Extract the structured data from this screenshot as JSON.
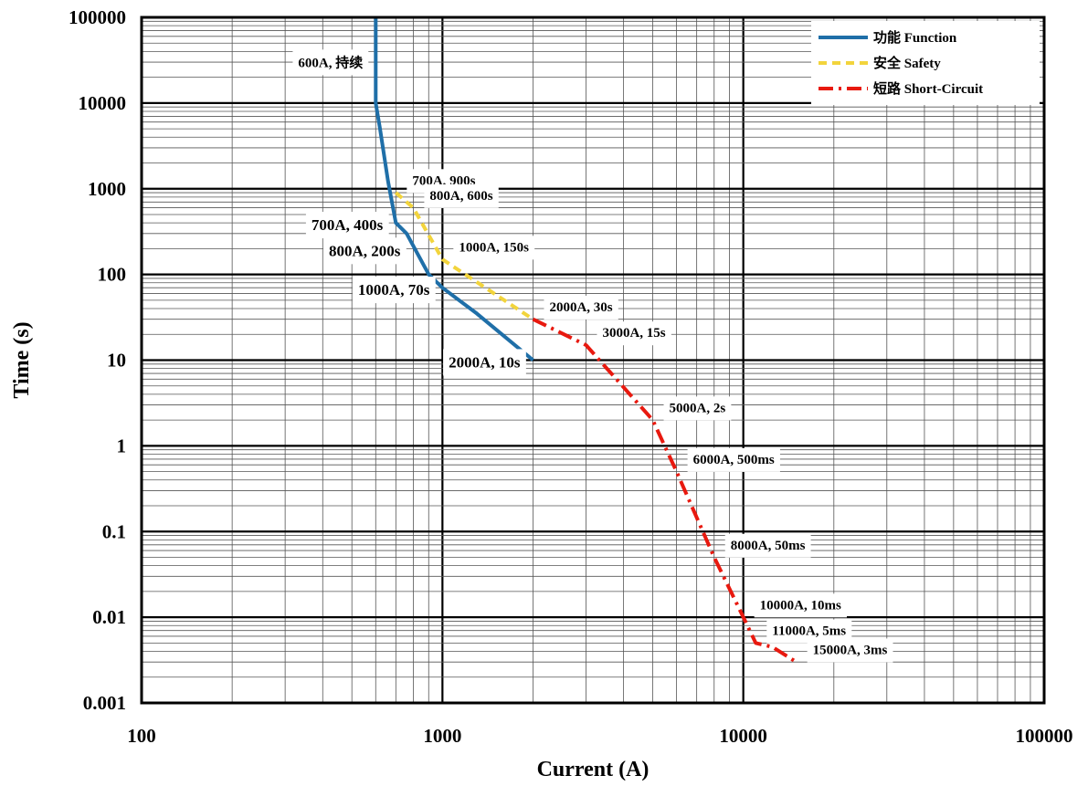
{
  "chart_data": {
    "type": "line",
    "xlabel": "Current (A)",
    "ylabel": "Time (s)",
    "xscale": "log",
    "yscale": "log",
    "xlim": [
      100,
      100000
    ],
    "ylim": [
      0.001,
      100000
    ],
    "x_ticks": [
      100,
      1000,
      10000,
      100000
    ],
    "x_tick_labels": [
      "100",
      "1000",
      "10000",
      "100000"
    ],
    "y_ticks": [
      0.001,
      0.01,
      0.1,
      1,
      10,
      100,
      1000,
      10000,
      100000
    ],
    "y_tick_labels": [
      "0.001",
      "0.01",
      "0.1",
      "1",
      "10",
      "100",
      "1000",
      "10000",
      "100000"
    ],
    "grid": true,
    "legend_position": "top-right",
    "series": [
      {
        "name": "功能 Function",
        "color": "#1f6fa8",
        "style": "solid",
        "x": [
          600,
          600,
          620,
          660,
          700,
          760,
          900,
          1000,
          1300,
          2000
        ],
        "y": [
          100000,
          10000,
          5000,
          1200,
          400,
          300,
          100,
          70,
          35,
          10
        ]
      },
      {
        "name": "安全 Safety",
        "color": "#f2d43c",
        "style": "dashed",
        "x": [
          700,
          800,
          1000,
          2000
        ],
        "y": [
          900,
          600,
          150,
          30
        ]
      },
      {
        "name": "短路 Short-Circuit",
        "color": "#e8190f",
        "style": "dashdot",
        "x": [
          2000,
          3000,
          5000,
          6000,
          8000,
          10000,
          11000,
          12500,
          15000
        ],
        "y": [
          30,
          15,
          2,
          0.5,
          0.05,
          0.01,
          0.005,
          0.0045,
          0.003
        ]
      }
    ],
    "annotations": [
      {
        "text": "600A, 持续",
        "x": 600,
        "y": 30000,
        "anchor": "end",
        "size": "small"
      },
      {
        "text": "700A, 900s",
        "x": 700,
        "y": 900,
        "anchor": "start",
        "size": "small"
      },
      {
        "text": "800A, 600s",
        "x": 800,
        "y": 600,
        "anchor": "start",
        "size": "small"
      },
      {
        "text": "700A, 400s",
        "x": 700,
        "y": 400,
        "anchor": "end",
        "size": "large"
      },
      {
        "text": "800A, 200s",
        "x": 800,
        "y": 200,
        "anchor": "end",
        "size": "large"
      },
      {
        "text": "1000A, 150s",
        "x": 1000,
        "y": 150,
        "anchor": "start",
        "size": "small"
      },
      {
        "text": "1000A, 70s",
        "x": 1000,
        "y": 70,
        "anchor": "end",
        "size": "large"
      },
      {
        "text": "2000A, 30s",
        "x": 2000,
        "y": 30,
        "anchor": "start",
        "size": "small"
      },
      {
        "text": "3000A, 15s",
        "x": 3000,
        "y": 15,
        "anchor": "start",
        "size": "small"
      },
      {
        "text": "2000A, 10s",
        "x": 2000,
        "y": 10,
        "anchor": "end",
        "size": "large"
      },
      {
        "text": "5000A, 2s",
        "x": 5000,
        "y": 2,
        "anchor": "start",
        "size": "small"
      },
      {
        "text": "6000A, 500ms",
        "x": 6000,
        "y": 0.5,
        "anchor": "start",
        "size": "small"
      },
      {
        "text": "8000A, 50ms",
        "x": 8000,
        "y": 0.05,
        "anchor": "start",
        "size": "small"
      },
      {
        "text": "10000A, 10ms",
        "x": 10000,
        "y": 0.01,
        "anchor": "start",
        "size": "small"
      },
      {
        "text": "11000A, 5ms",
        "x": 11000,
        "y": 0.005,
        "anchor": "start",
        "size": "small"
      },
      {
        "text": "15000A, 3ms",
        "x": 15000,
        "y": 0.003,
        "anchor": "start",
        "size": "small"
      }
    ]
  }
}
